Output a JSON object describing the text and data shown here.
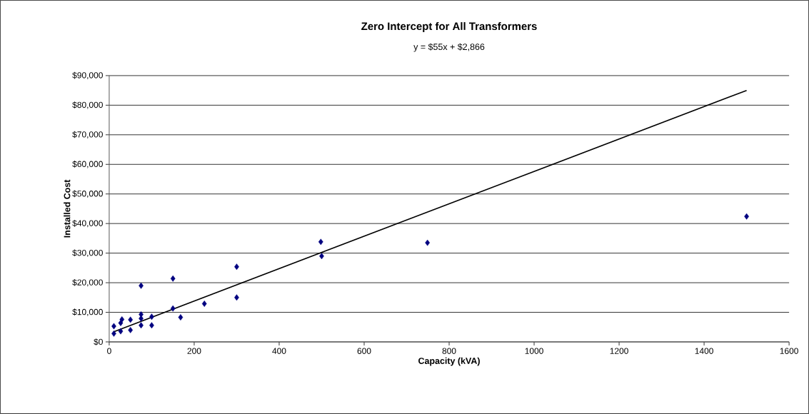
{
  "chart_data": {
    "type": "scatter",
    "title": "Zero Intercept for All Transformers",
    "subtitle": "y = $55x + $2,866",
    "xlabel": "Capacity (kVA)",
    "ylabel": "Installed Cost",
    "series": [
      {
        "color": "#000080",
        "marker": "diamond",
        "x": [
          11,
          11,
          27,
          27,
          30,
          50,
          50,
          75,
          75,
          75,
          75,
          100,
          100,
          150,
          150,
          168,
          224,
          300,
          300,
          498,
          500,
          749,
          1500
        ],
        "values": [
          5300,
          2800,
          3600,
          6400,
          7600,
          7500,
          4000,
          19000,
          9300,
          7900,
          5600,
          8500,
          5600,
          21400,
          11300,
          8300,
          12900,
          25400,
          15000,
          33800,
          29000,
          33500,
          42400
        ]
      },
      {
        "type": "line",
        "color": "#000000",
        "marker": "none",
        "line_style": "solid",
        "x": [
          10,
          1500
        ],
        "values": [
          3400,
          85000
        ]
      }
    ],
    "xlim": [
      0,
      1600
    ],
    "xticks": [
      0,
      200,
      400,
      600,
      800,
      1000,
      1200,
      1400,
      1600
    ],
    "ylim": [
      0,
      90000
    ],
    "yticks": [
      {
        "value": 0,
        "label": "$0"
      },
      {
        "value": 10000,
        "label": "$10,000"
      },
      {
        "value": 20000,
        "label": "$20,000"
      },
      {
        "value": 30000,
        "label": "$30,000"
      },
      {
        "value": 40000,
        "label": "$40,000"
      },
      {
        "value": 50000,
        "label": "$50,000"
      },
      {
        "value": 60000,
        "label": "$60,000"
      },
      {
        "value": 70000,
        "label": "$70,000"
      },
      {
        "value": 80000,
        "label": "$80,000"
      },
      {
        "value": 90000,
        "label": "$90,000"
      }
    ],
    "grid": "y"
  }
}
